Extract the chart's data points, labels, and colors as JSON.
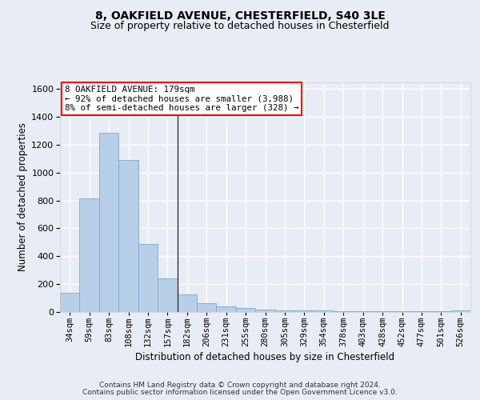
{
  "title1": "8, OAKFIELD AVENUE, CHESTERFIELD, S40 3LE",
  "title2": "Size of property relative to detached houses in Chesterfield",
  "xlabel": "Distribution of detached houses by size in Chesterfield",
  "ylabel": "Number of detached properties",
  "categories": [
    "34sqm",
    "59sqm",
    "83sqm",
    "108sqm",
    "132sqm",
    "157sqm",
    "182sqm",
    "206sqm",
    "231sqm",
    "255sqm",
    "280sqm",
    "305sqm",
    "329sqm",
    "354sqm",
    "378sqm",
    "403sqm",
    "428sqm",
    "452sqm",
    "477sqm",
    "501sqm",
    "526sqm"
  ],
  "values": [
    140,
    815,
    1285,
    1090,
    490,
    240,
    125,
    65,
    40,
    27,
    15,
    10,
    10,
    10,
    5,
    5,
    5,
    5,
    5,
    5,
    10
  ],
  "bar_color": "#b8cfe8",
  "bar_edge_color": "#7aaad0",
  "annotation_text": "8 OAKFIELD AVENUE: 179sqm\n← 92% of detached houses are smaller (3,988)\n8% of semi-detached houses are larger (328) →",
  "ylim": [
    0,
    1650
  ],
  "yticks": [
    0,
    200,
    400,
    600,
    800,
    1000,
    1200,
    1400,
    1600
  ],
  "bg_color": "#e8edf5",
  "grid_color": "white",
  "footer1": "Contains HM Land Registry data © Crown copyright and database right 2024.",
  "footer2": "Contains public sector information licensed under the Open Government Licence v3.0."
}
